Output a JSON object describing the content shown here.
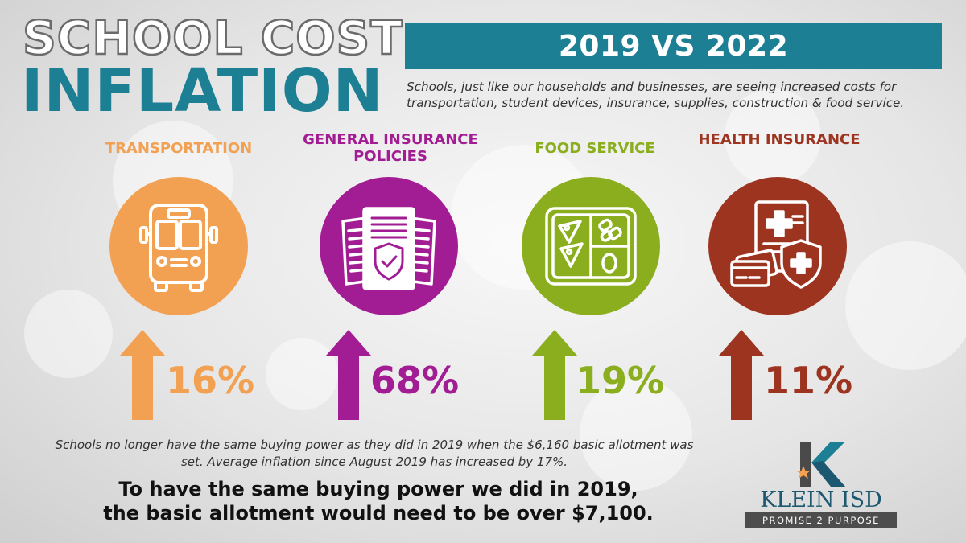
{
  "header": {
    "title_line1": "SCHOOL COST",
    "title_line2": "INFLATION",
    "banner": "2019 VS 2022",
    "subtitle": "Schools, just like our households and businesses, are seeing increased costs for transportation, student devices, insurance, supplies, construction & food service."
  },
  "categories": [
    {
      "label": "TRANSPORTATION",
      "icon": "bus-icon",
      "change": "16%",
      "direction": "up",
      "color": "#f2a052"
    },
    {
      "label": "GENERAL INSURANCE POLICIES",
      "icon": "insurance-policy-icon",
      "change": "68%",
      "direction": "up",
      "color": "#a21c93"
    },
    {
      "label": "FOOD SERVICE",
      "icon": "lunch-tray-icon",
      "change": "19%",
      "direction": "up",
      "color": "#8bae1e"
    },
    {
      "label": "HEALTH INSURANCE",
      "icon": "health-insurance-icon",
      "change": "11%",
      "direction": "up",
      "color": "#9d3420"
    }
  ],
  "footer": {
    "note": "Schools no longer have the same buying power as they did in 2019 when the $6,160 basic allotment was set. Average inflation since August 2019 has increased by 17%.",
    "callout_line1": "To have the same buying power we did in 2019,",
    "callout_line2": "the basic allotment would need to be over $7,100."
  },
  "logo": {
    "name": "KLEIN ISD",
    "tagline": "PROMISE 2 PURPOSE"
  },
  "colors": {
    "teal": "#1c7f93",
    "orange": "#f2a052",
    "purple": "#a21c93",
    "green": "#8bae1e",
    "rust": "#9d3420"
  }
}
